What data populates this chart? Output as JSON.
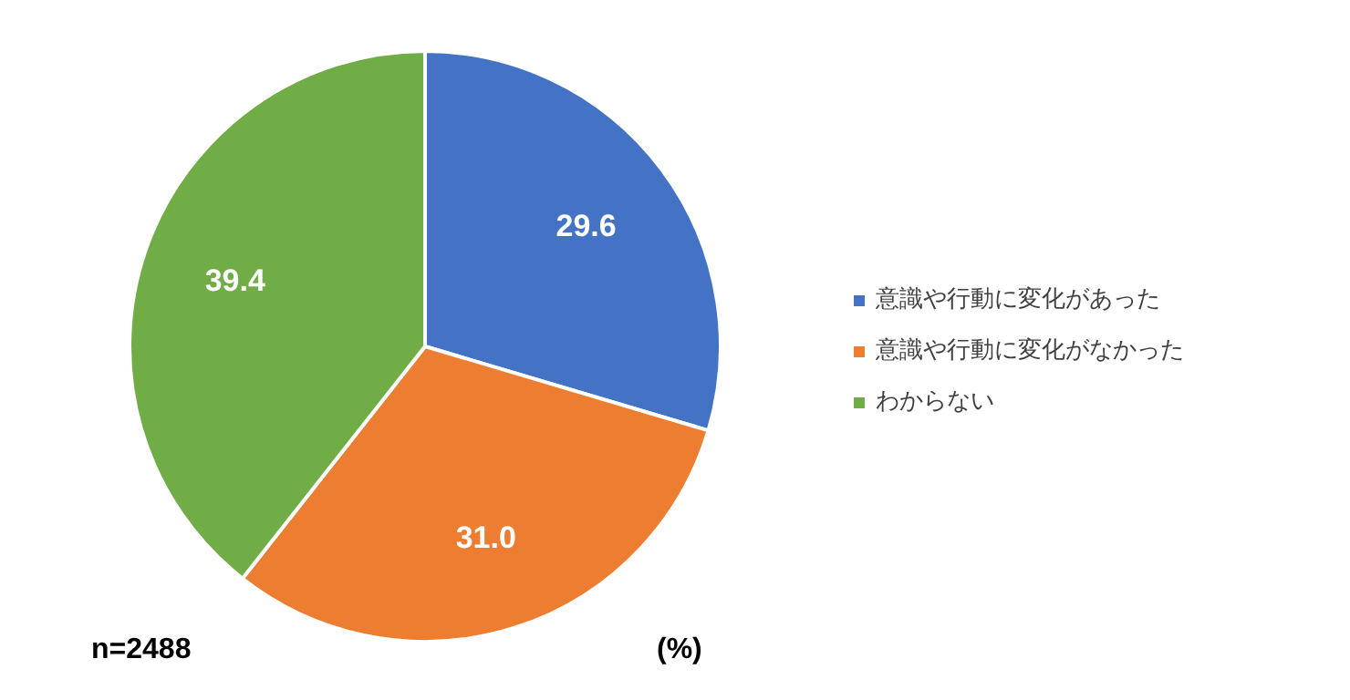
{
  "chart_data": {
    "type": "pie",
    "categories": [
      "意識や行動に変化があった",
      "意識や行動に変化がなかった",
      "わからない"
    ],
    "values": [
      29.6,
      31.0,
      39.4
    ],
    "colors": [
      "#4472c4",
      "#ed7d31",
      "#70ad47"
    ],
    "value_labels": [
      "29.6",
      "31.0",
      "39.4"
    ],
    "legend": "right",
    "annotations": [
      "n=2488",
      "(%)"
    ]
  }
}
